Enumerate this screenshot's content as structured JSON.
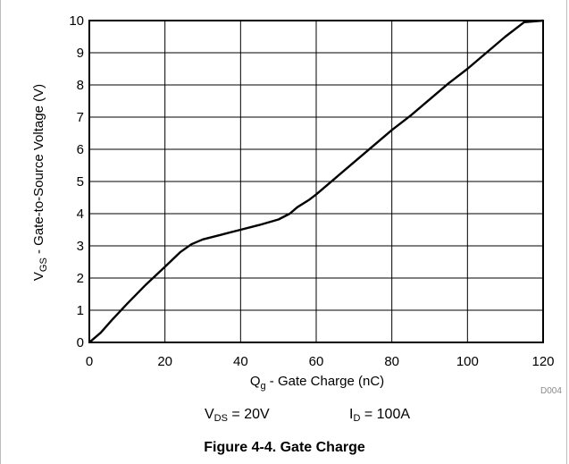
{
  "chart_data": {
    "type": "line",
    "xlabel": {
      "main": "Q",
      "sub": "g",
      "rest": " - Gate Charge (nC)"
    },
    "ylabel": {
      "main": "V",
      "sub": "GS",
      "rest": " - Gate-to-Source Voltage (V)"
    },
    "xlim": [
      0,
      120
    ],
    "ylim": [
      0,
      10
    ],
    "xticks": [
      "0",
      "20",
      "40",
      "60",
      "80",
      "100",
      "120"
    ],
    "yticks": [
      "0",
      "1",
      "2",
      "3",
      "4",
      "5",
      "6",
      "7",
      "8",
      "9",
      "10"
    ],
    "grid": true,
    "series": [
      {
        "x": [
          0,
          3,
          6,
          10,
          15,
          20,
          24,
          27,
          30,
          35,
          40,
          45,
          50,
          53,
          55,
          58,
          60,
          65,
          70,
          75,
          80,
          85,
          90,
          95,
          100,
          105,
          110,
          115,
          120
        ],
        "y": [
          0,
          0.3,
          0.7,
          1.2,
          1.8,
          2.35,
          2.8,
          3.05,
          3.2,
          3.35,
          3.5,
          3.65,
          3.82,
          4.0,
          4.2,
          4.42,
          4.6,
          5.1,
          5.6,
          6.1,
          6.6,
          7.05,
          7.55,
          8.05,
          8.5,
          9.0,
          9.5,
          9.95,
          10.0
        ]
      }
    ],
    "figure_code": "D004"
  },
  "conditions": {
    "vds": {
      "main": "V",
      "sub": "DS",
      "rest": " = 20V"
    },
    "id": {
      "main": "I",
      "sub": "D",
      "rest": " = 100A"
    }
  },
  "caption": "Figure 4-4. Gate Charge"
}
